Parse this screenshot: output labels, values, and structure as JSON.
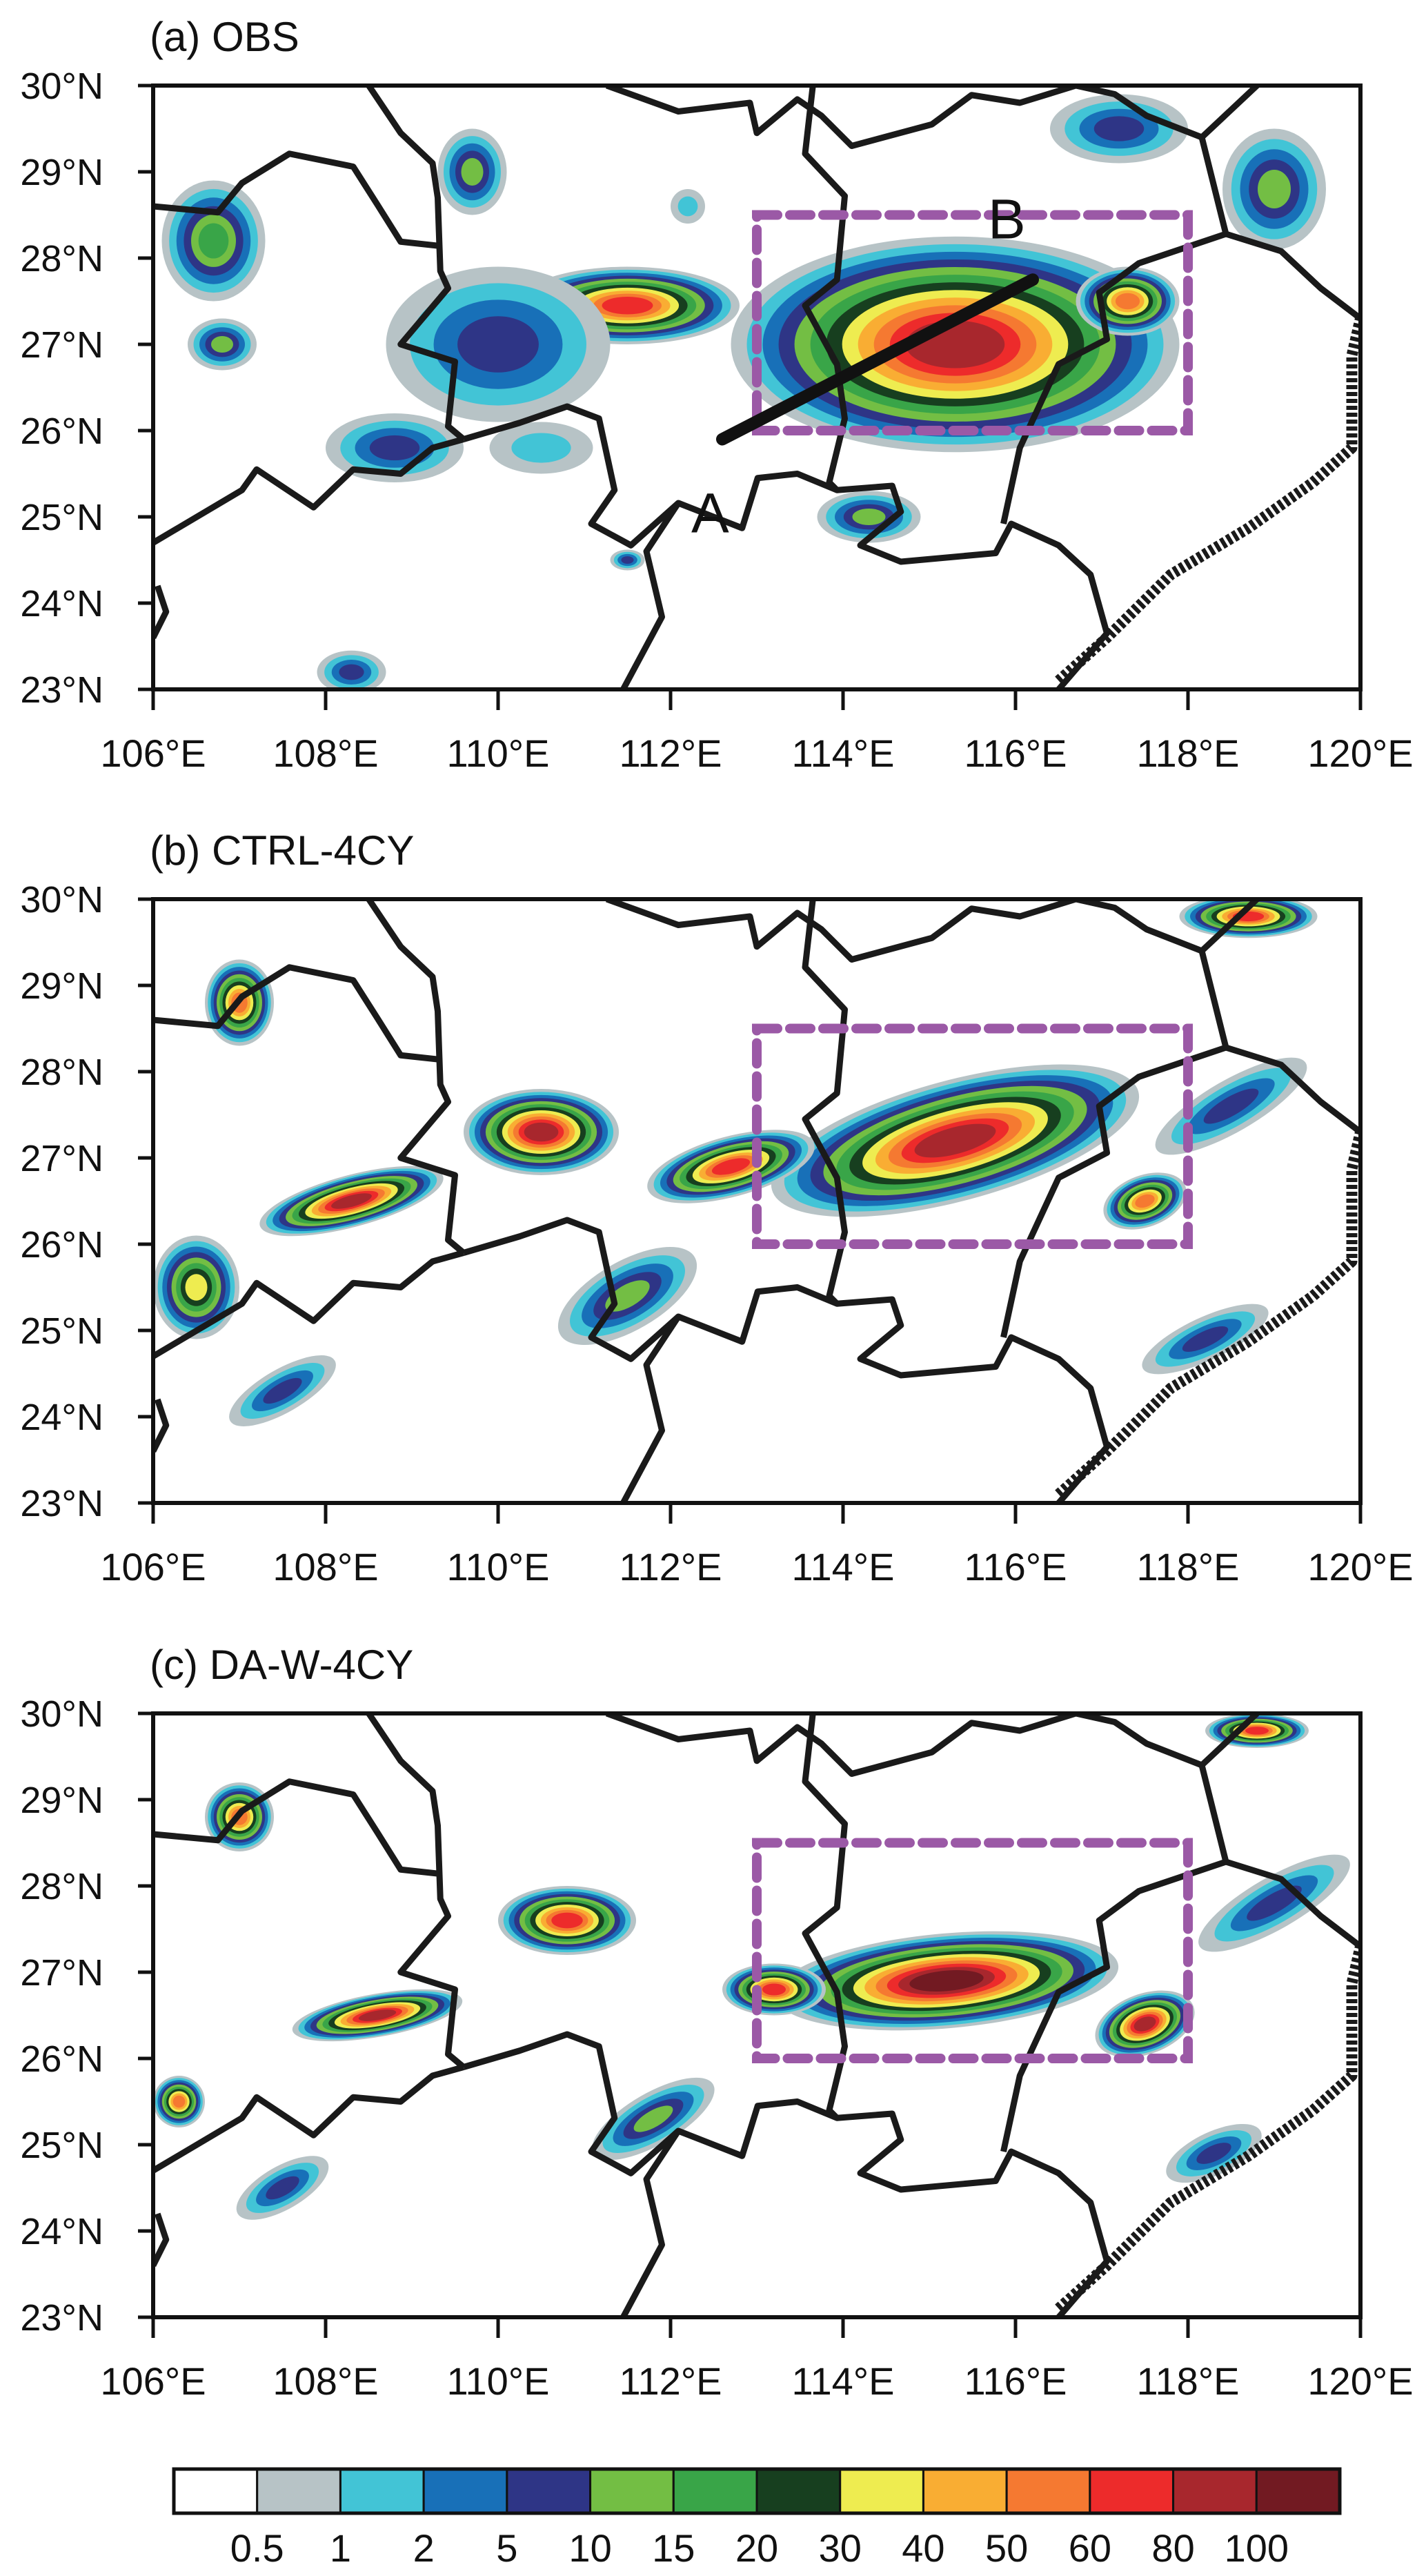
{
  "chart_data": [
    {
      "type": "contour-map",
      "title": "(a) OBS",
      "xlim": [
        106,
        120
      ],
      "ylim": [
        23,
        30
      ],
      "dashed_box": {
        "lon": [
          113,
          118
        ],
        "lat": [
          26,
          28.5
        ],
        "color": "#9b59a6"
      },
      "cross_section": {
        "start": [
          112.6,
          25.9
        ],
        "end": [
          116.2,
          27.75
        ],
        "start_label": "A",
        "end_label": "B"
      },
      "rain_cells": [
        [
          115.3,
          27.0,
          2.6,
          1.25,
          0,
          12
        ],
        [
          117.3,
          27.5,
          0.6,
          0.4,
          0,
          10
        ],
        [
          111.5,
          27.45,
          1.3,
          0.45,
          0,
          11
        ],
        [
          110.0,
          27.0,
          1.3,
          0.9,
          0,
          4
        ],
        [
          106.7,
          28.2,
          0.6,
          0.7,
          0,
          6
        ],
        [
          119.0,
          28.8,
          0.6,
          0.7,
          0,
          5
        ],
        [
          117.2,
          29.5,
          0.8,
          0.4,
          0,
          4
        ],
        [
          112.2,
          28.6,
          0.2,
          0.2,
          0,
          2
        ],
        [
          106.8,
          27.0,
          0.4,
          0.3,
          0,
          5
        ],
        [
          108.8,
          25.8,
          0.8,
          0.4,
          0,
          4
        ],
        [
          111.5,
          24.5,
          0.2,
          0.12,
          0,
          4
        ],
        [
          108.3,
          23.2,
          0.4,
          0.25,
          0,
          4
        ],
        [
          114.3,
          25.0,
          0.6,
          0.3,
          0,
          5
        ],
        [
          110.5,
          25.8,
          0.6,
          0.3,
          0,
          2
        ],
        [
          109.7,
          29.0,
          0.4,
          0.5,
          0,
          5
        ]
      ]
    },
    {
      "type": "contour-map",
      "title": "(b) CTRL-4CY",
      "xlim": [
        106,
        120
      ],
      "ylim": [
        23,
        30
      ],
      "dashed_box": {
        "lon": [
          113,
          118
        ],
        "lat": [
          26,
          28.5
        ],
        "color": "#9b59a6"
      },
      "rain_cells": [
        [
          115.3,
          27.2,
          2.2,
          0.7,
          -15,
          12
        ],
        [
          112.7,
          26.9,
          1.0,
          0.35,
          -15,
          11
        ],
        [
          110.5,
          27.3,
          0.9,
          0.5,
          0,
          12
        ],
        [
          108.3,
          26.5,
          1.1,
          0.3,
          -15,
          12
        ],
        [
          107.0,
          28.8,
          0.4,
          0.5,
          0,
          10
        ],
        [
          117.5,
          26.5,
          0.5,
          0.3,
          -20,
          10
        ],
        [
          111.5,
          25.4,
          0.9,
          0.4,
          -30,
          5
        ],
        [
          106.5,
          25.5,
          0.5,
          0.6,
          0,
          8
        ],
        [
          118.2,
          24.9,
          0.8,
          0.25,
          -25,
          4
        ],
        [
          118.5,
          27.6,
          1.0,
          0.3,
          -30,
          4
        ],
        [
          118.7,
          29.8,
          0.8,
          0.25,
          0,
          11
        ],
        [
          107.5,
          24.3,
          0.7,
          0.25,
          -30,
          4
        ]
      ]
    },
    {
      "type": "contour-map",
      "title": "(c) DA-W-4CY",
      "xlim": [
        106,
        120
      ],
      "ylim": [
        23,
        30
      ],
      "dashed_box": {
        "lon": [
          113,
          118
        ],
        "lat": [
          26,
          28.5
        ],
        "color": "#9b59a6"
      },
      "rain_cells": [
        [
          115.2,
          26.9,
          2.0,
          0.55,
          -5,
          13
        ],
        [
          113.2,
          26.8,
          0.6,
          0.3,
          0,
          11
        ],
        [
          117.5,
          26.4,
          0.6,
          0.35,
          -20,
          12
        ],
        [
          108.6,
          26.5,
          1.0,
          0.25,
          -10,
          12
        ],
        [
          110.8,
          27.6,
          0.8,
          0.4,
          0,
          11
        ],
        [
          107.0,
          28.8,
          0.4,
          0.4,
          0,
          10
        ],
        [
          118.8,
          29.8,
          0.6,
          0.2,
          0,
          11
        ],
        [
          111.8,
          25.3,
          0.8,
          0.3,
          -30,
          5
        ],
        [
          106.3,
          25.5,
          0.3,
          0.3,
          0,
          10
        ],
        [
          118.3,
          24.9,
          0.6,
          0.25,
          -25,
          4
        ],
        [
          119.0,
          27.8,
          1.0,
          0.3,
          -30,
          4
        ],
        [
          107.5,
          24.5,
          0.6,
          0.25,
          -30,
          4
        ]
      ]
    }
  ],
  "axes": {
    "lat_ticks": [
      30,
      29,
      28,
      27,
      26,
      25,
      24,
      23
    ],
    "lat_labels": [
      "30°N",
      "29°N",
      "28°N",
      "27°N",
      "26°N",
      "25°N",
      "24°N",
      "23°N"
    ],
    "lon_ticks": [
      106,
      108,
      110,
      112,
      114,
      116,
      118,
      120
    ],
    "lon_labels": [
      "106°E",
      "108°E",
      "110°E",
      "112°E",
      "114°E",
      "116°E",
      "118°E",
      "120°E"
    ]
  },
  "colorbar": {
    "levels": [
      "0.5",
      "1",
      "2",
      "5",
      "10",
      "15",
      "20",
      "30",
      "40",
      "50",
      "60",
      "80",
      "100"
    ],
    "colors": [
      "#ffffff",
      "#b7c3c6",
      "#42c4d6",
      "#1870b8",
      "#2e3586",
      "#73be44",
      "#39a548",
      "#173f1f",
      "#eeec50",
      "#f9ad33",
      "#f57931",
      "#ed2b2b",
      "#a8272d",
      "#721a22"
    ]
  }
}
